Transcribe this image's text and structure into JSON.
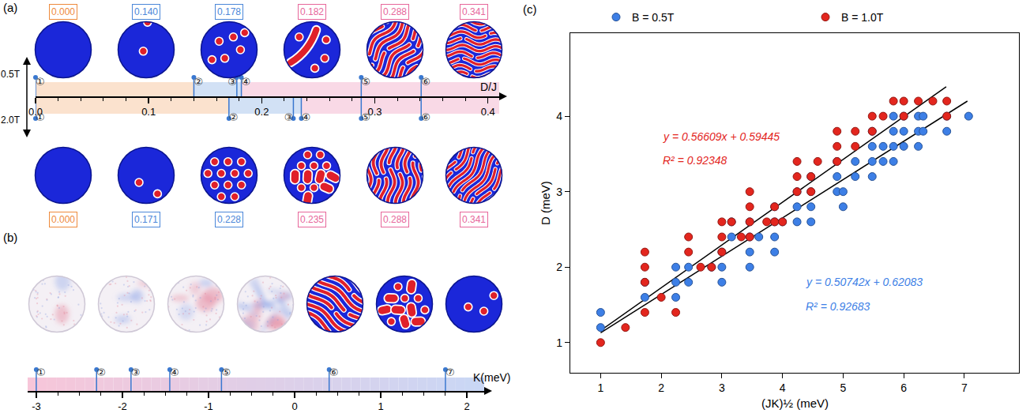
{
  "chart_data": [
    {
      "type": "number_line",
      "panel_label": "(a)",
      "x_label": "D/J",
      "xlim": [
        0,
        0.41
      ],
      "xticks": [
        {
          "value": 0,
          "label": "0.0"
        },
        0.1,
        0.2,
        0.3,
        0.4
      ],
      "series": [
        {
          "name": "0.5T",
          "tags": [
            "①",
            "②",
            "③",
            "④",
            "⑤",
            "⑥"
          ],
          "values": [
            0,
            0.14,
            0.178,
            0.182,
            0.288,
            0.341
          ],
          "value_labels": [
            "0.000",
            "0.140",
            "0.178",
            "0.182",
            "0.288",
            "0.341"
          ],
          "colors": [
            "#ee8a3c",
            "#4b87d9",
            "#4b87d9",
            "#e7679b",
            "#e7679b",
            "#e7679b"
          ]
        },
        {
          "name": "2.0T",
          "tags": [
            "①",
            "②",
            "③",
            "④",
            "⑤",
            "⑥"
          ],
          "values": [
            0,
            0.171,
            0.228,
            0.235,
            0.288,
            0.341
          ],
          "value_labels": [
            "0.000",
            "0.171",
            "0.228",
            "0.235",
            "0.288",
            "0.341"
          ],
          "colors": [
            "#ee8a3c",
            "#4b87d9",
            "#4b87d9",
            "#e7679b",
            "#e7679b",
            "#e7679b"
          ]
        }
      ]
    },
    {
      "type": "number_line",
      "panel_label": "(b)",
      "x_label": "K(meV)",
      "xlim": [
        -3.1,
        2.2
      ],
      "xticks": [
        -3,
        -2,
        -1,
        0,
        1,
        2
      ],
      "series": [
        {
          "tags": [
            "①",
            "②",
            "③",
            "④",
            "⑤",
            "⑥",
            "⑦"
          ],
          "values": [
            -3,
            -2.3,
            -1.9,
            -1.45,
            -0.85,
            0.4,
            1.75
          ]
        }
      ]
    },
    {
      "type": "scatter",
      "panel_label": "(c)",
      "x_label": "(JK)½ (meV)",
      "y_label": "D (meV)",
      "xlim": [
        0.5,
        7.9
      ],
      "xticks": [
        1,
        2,
        3,
        4,
        5,
        6,
        7
      ],
      "ylim": [
        0.6,
        5.1
      ],
      "yticks": [
        1,
        2,
        3,
        4
      ],
      "legend": "top",
      "series": [
        {
          "name": "B = 0.5T",
          "color": "#3d7fe6",
          "x": [
            1,
            1,
            1.73,
            1.73,
            2.24,
            2.24,
            2.24,
            2.45,
            2.45,
            2.83,
            3,
            3,
            3,
            3.16,
            3.16,
            3.46,
            3.46,
            3.46,
            3.46,
            3.61,
            3.87,
            3.87,
            3.87,
            3.87,
            4,
            4.24,
            4.24,
            4.24,
            4.47,
            4.47,
            4.47,
            4.47,
            4.9,
            4.9,
            4.9,
            5,
            5,
            5.2,
            5.2,
            5.48,
            5.48,
            5.48,
            5.48,
            5.66,
            5.66,
            5.83,
            5.83,
            5.83,
            5.83,
            6,
            6,
            6,
            6.24,
            6.24,
            6.24,
            6.32,
            6.32,
            6.71,
            6.71,
            7.07
          ],
          "values": [
            1.2,
            1.4,
            1.6,
            1.8,
            1.6,
            1.8,
            2.0,
            1.8,
            2.0,
            2.0,
            1.8,
            2.0,
            2.2,
            2.4,
            2.6,
            2.0,
            2.2,
            2.4,
            2.6,
            2.4,
            2.2,
            2.4,
            2.6,
            2.8,
            2.6,
            2.6,
            2.8,
            3.0,
            2.6,
            2.8,
            3.0,
            3.2,
            3.0,
            3.2,
            3.4,
            2.8,
            3.0,
            3.2,
            3.4,
            3.2,
            3.4,
            3.6,
            3.8,
            3.4,
            3.6,
            3.4,
            3.6,
            3.8,
            4.0,
            3.6,
            3.8,
            4.0,
            3.6,
            3.8,
            4.0,
            3.8,
            4.0,
            3.8,
            4.0,
            4.0
          ]
        },
        {
          "name": "B = 1.0T",
          "color": "#e3261e",
          "x": [
            1,
            1.41,
            1.73,
            1.73,
            1.73,
            1.73,
            2,
            2.24,
            2.45,
            2.45,
            2.65,
            2.83,
            3,
            3,
            3,
            3.16,
            3.32,
            3.46,
            3.46,
            3.46,
            3.46,
            3.74,
            3.87,
            3.87,
            4,
            4.24,
            4.24,
            4.24,
            4.47,
            4.47,
            4.58,
            4.9,
            4.9,
            4.9,
            5.2,
            5.2,
            5.48,
            5.48,
            5.66,
            5.83,
            6,
            6,
            6.24,
            6.48,
            6.71,
            6.71
          ],
          "values": [
            1.0,
            1.2,
            1.4,
            1.8,
            2.0,
            2.2,
            1.6,
            1.4,
            2.2,
            2.4,
            2.0,
            2.0,
            2.2,
            2.4,
            2.6,
            2.6,
            2.4,
            2.4,
            2.6,
            2.8,
            3.0,
            2.6,
            2.6,
            2.8,
            2.6,
            3.0,
            3.2,
            3.4,
            3.0,
            3.2,
            3.4,
            3.4,
            3.6,
            3.8,
            3.6,
            3.8,
            3.8,
            4.0,
            4.0,
            4.2,
            4.0,
            4.2,
            4.2,
            4.2,
            4.0,
            4.2
          ]
        },
        {
          "type": "line",
          "color": "#000000",
          "x": [
            1,
            7.05
          ],
          "values": [
            1.13,
            4.2
          ]
        },
        {
          "type": "line",
          "color": "#000000",
          "x": [
            1,
            6.7
          ],
          "values": [
            1.16,
            4.39
          ]
        }
      ],
      "annotations": [
        {
          "text": "y = 0.56609x + 0.59445",
          "color": "#e3261e"
        },
        {
          "text": "R² = 0.92348",
          "color": "#e3261e"
        },
        {
          "text": "y = 0.50742x + 0.62083",
          "color": "#3d7fe6"
        },
        {
          "text": "R² = 0.92683",
          "color": "#3d7fe6"
        }
      ]
    }
  ]
}
